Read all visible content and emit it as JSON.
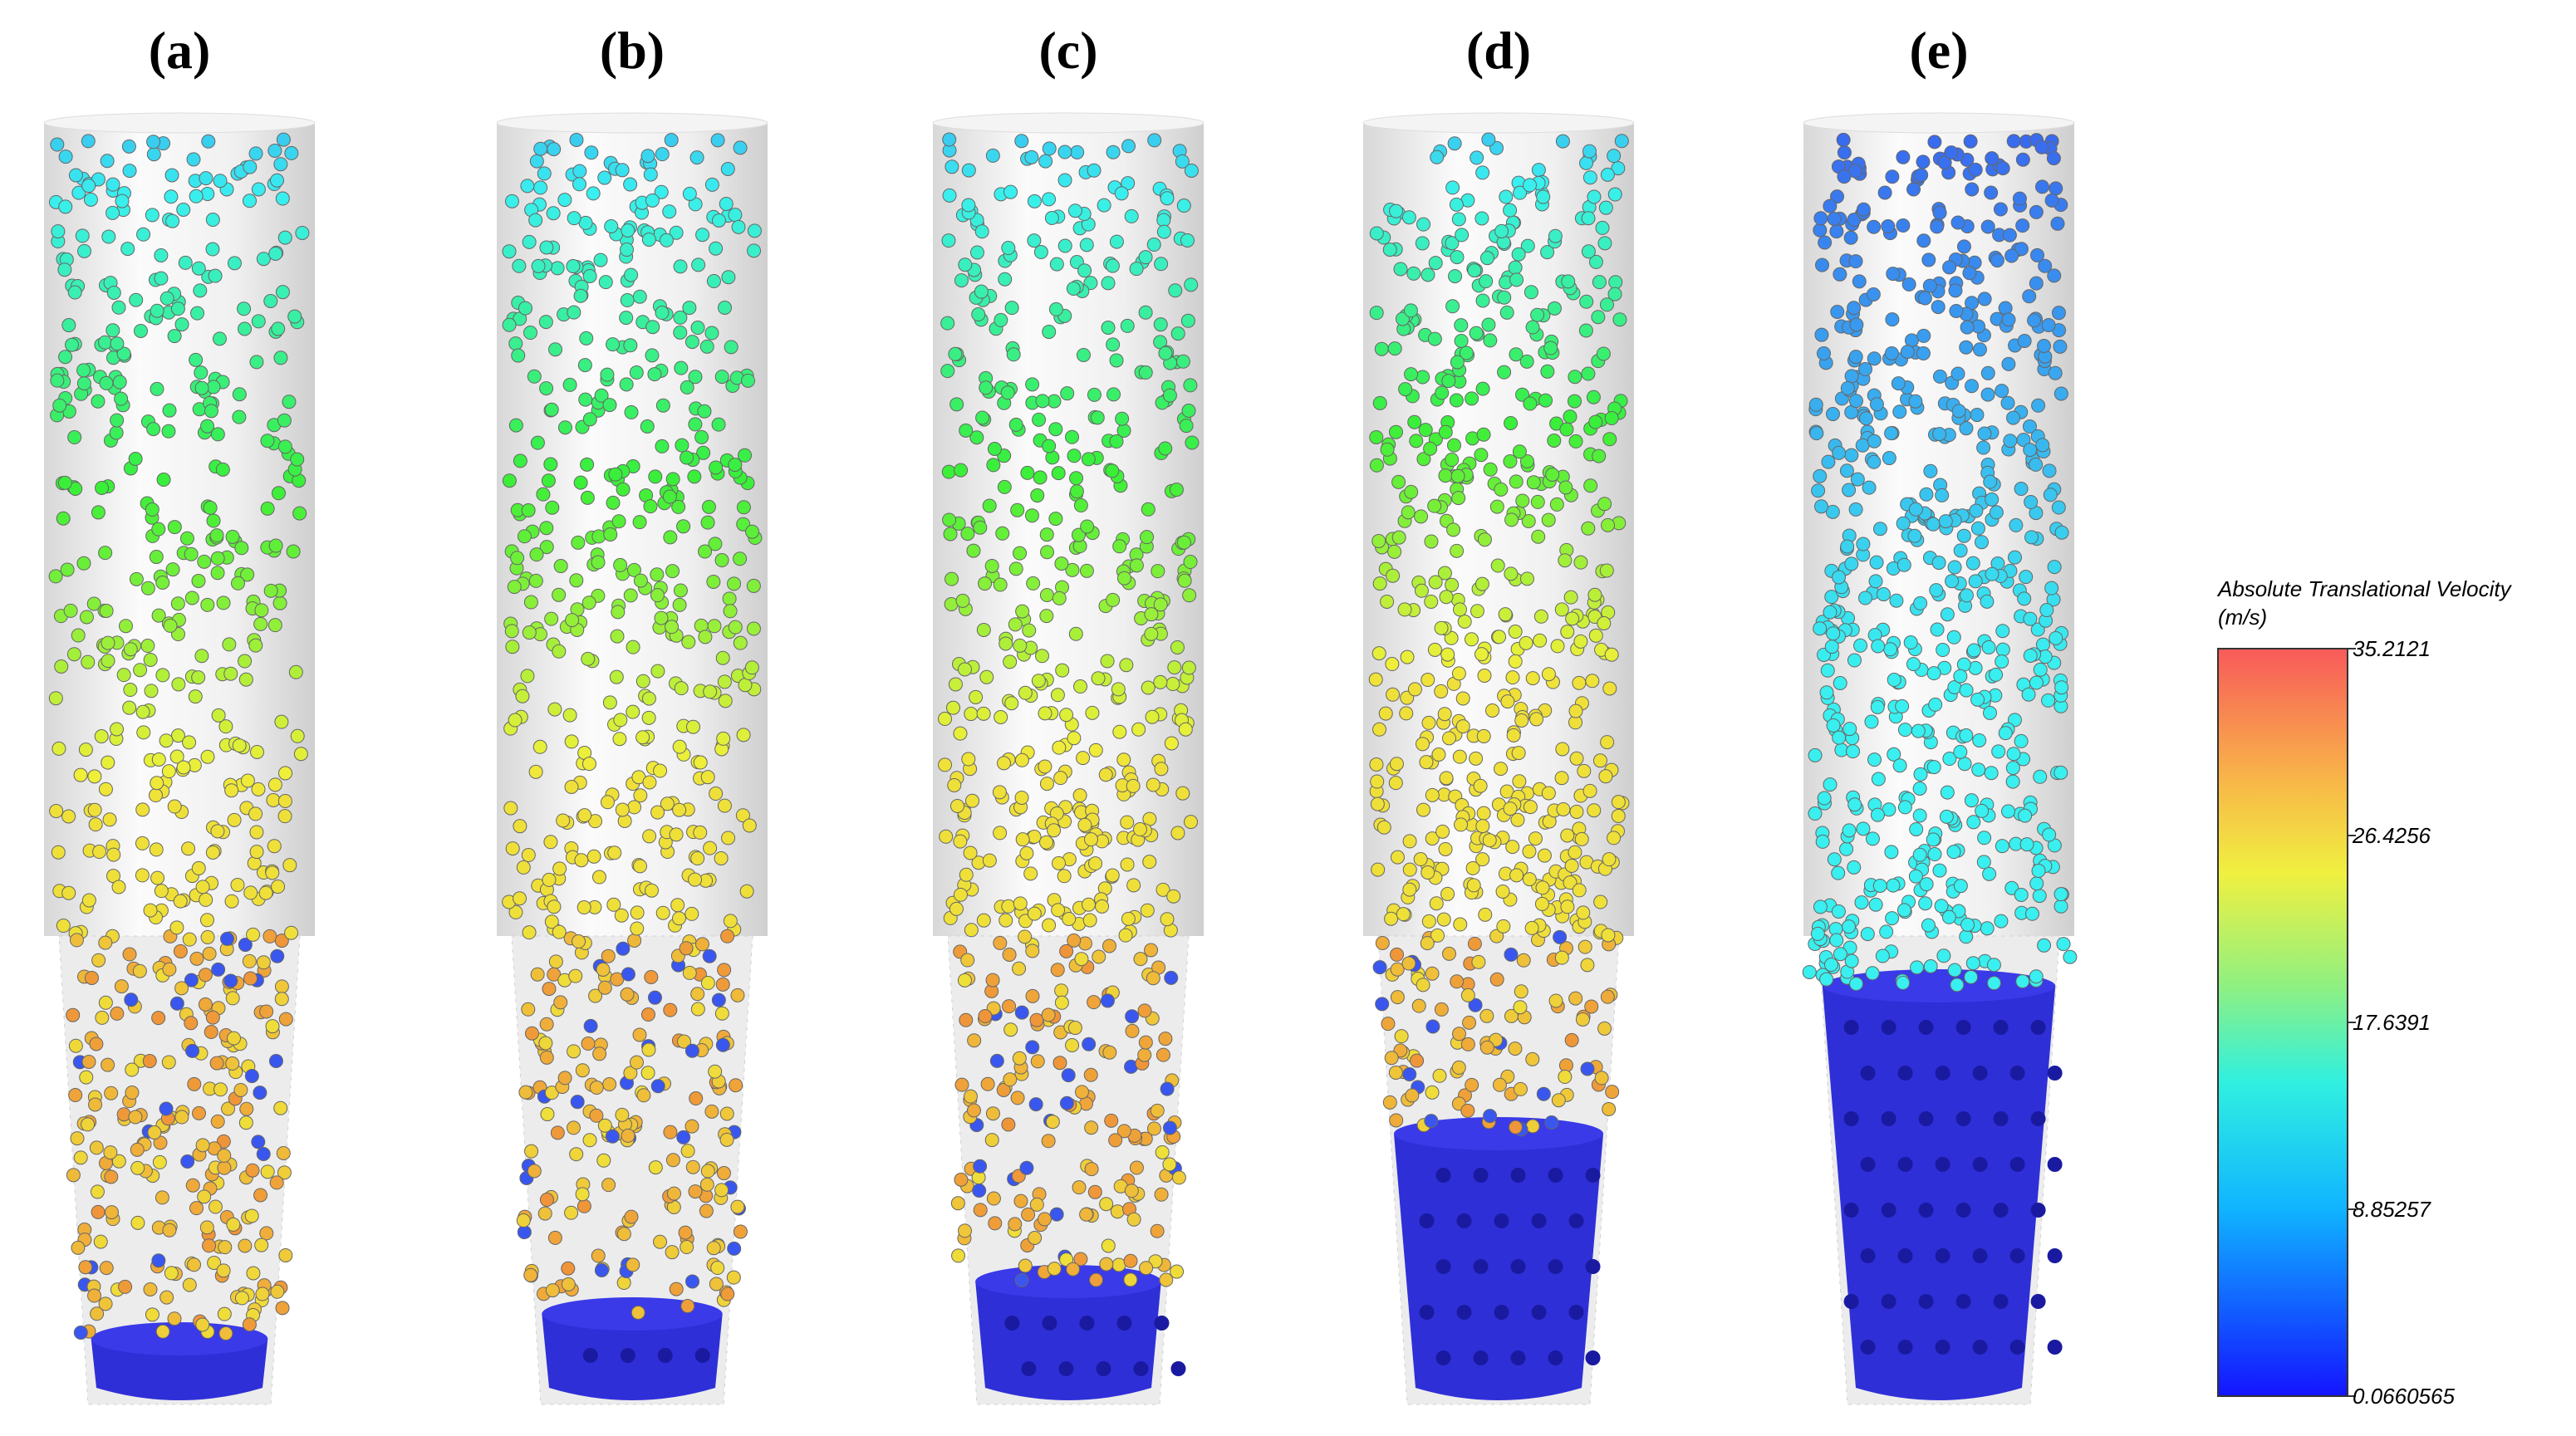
{
  "panels": [
    {
      "label": "(a)"
    },
    {
      "label": "(b)"
    },
    {
      "label": "(c)"
    },
    {
      "label": "(d)"
    },
    {
      "label": "(e)"
    }
  ],
  "colorbar": {
    "title": "Absolute Translational Velocity",
    "unit": "(m/s)",
    "lim": [
      0.0660565,
      35.2121
    ],
    "ticks": [
      35.2121,
      26.4256,
      17.6391,
      8.85257,
      0.0660565
    ]
  }
}
